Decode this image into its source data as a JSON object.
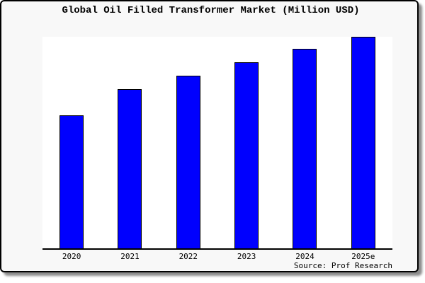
{
  "colors": {
    "panel_background": "#F8F8F8",
    "plot_background": "#FFFFFF",
    "border": "#000000",
    "text": "#000000"
  },
  "chart_data": {
    "type": "bar",
    "title": "Global Oil Filled Transformer Market (Million USD)",
    "categories": [
      "2020",
      "2021",
      "2022",
      "2023",
      "2024",
      "2025e"
    ],
    "values": [
      63,
      75.1,
      81.7,
      87.9,
      94.2,
      100
    ],
    "values_note": "no numeric y-axis shown in chart; values are bar heights relative to tallest bar (2025e = 100)",
    "xlabel": "",
    "ylabel": "",
    "ylim": [
      0,
      100
    ],
    "grid": false,
    "legend": null,
    "y_axis_labels_visible": false,
    "bar_color": "#0000FE",
    "bar_edge_color": "#000000"
  },
  "footer": {
    "source": "Source: Prof Research"
  }
}
